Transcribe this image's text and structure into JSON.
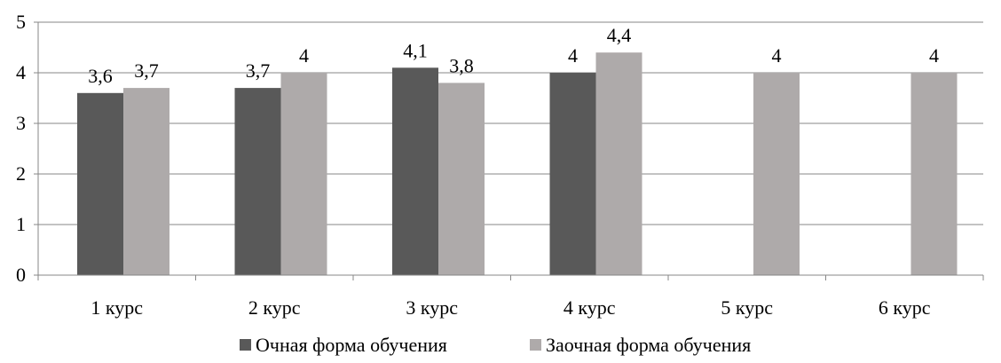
{
  "chart_data": {
    "type": "bar",
    "categories": [
      "1 курс",
      "2 курс",
      "3 курс",
      "4 курс",
      "5 курс",
      "6 курс"
    ],
    "series": [
      {
        "name": "Очная форма обучения",
        "color": "#595959",
        "values": [
          3.6,
          3.7,
          4.1,
          4.0,
          null,
          null
        ],
        "labels": [
          "3,6",
          "3,7",
          "4,1",
          "4",
          "",
          ""
        ]
      },
      {
        "name": "Заочная форма обучения",
        "color": "#aeaaaa",
        "values": [
          3.7,
          4.0,
          3.8,
          4.4,
          4.0,
          4.0
        ],
        "labels": [
          "3,7",
          "4",
          "3,8",
          "4,4",
          "4",
          "4"
        ]
      }
    ],
    "y_ticks": [
      "0",
      "1",
      "2",
      "3",
      "4",
      "5"
    ],
    "ylim": [
      0,
      5
    ],
    "grid": true,
    "legend": "bottom",
    "title": "",
    "xlabel": "",
    "ylabel": ""
  }
}
